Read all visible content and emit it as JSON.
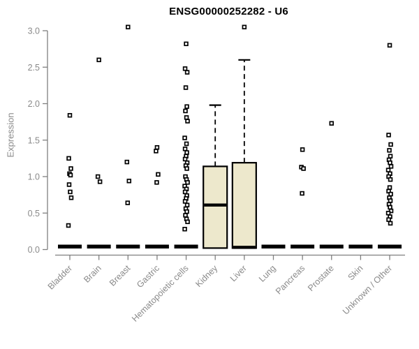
{
  "style": {
    "background": "#ffffff",
    "title_color": "#000000",
    "axis_color": "#7f7f7f",
    "label_color": "#8a8a8a",
    "box_fill": "#ede8cc",
    "box_stroke": "#000000",
    "point_color": "#000000",
    "zero_bar_color": "#000000"
  },
  "chart_data": {
    "type": "boxplot",
    "title": "ENSG00000252282 - U6",
    "ylabel": "Expression",
    "xlabel": "",
    "ylim": [
      0.0,
      3.1
    ],
    "yticks": [
      0.0,
      0.5,
      1.0,
      1.5,
      2.0,
      2.5,
      3.0
    ],
    "ytick_labels": [
      "0.0",
      "0.5",
      "1.0",
      "1.5",
      "2.0",
      "2.5",
      "3.0"
    ],
    "grid": false,
    "legend": null,
    "categories": [
      "Bladder",
      "Brain",
      "Breast",
      "Gastric",
      "Hematopoietic cells",
      "Kidney",
      "Liver",
      "Lung",
      "Pancreas",
      "Prostate",
      "Skin",
      "Unknown / Other"
    ],
    "series": [
      {
        "name": "Bladder",
        "box": {
          "min": 0,
          "q1": 0,
          "median": 0,
          "q3": 0,
          "max": 0
        },
        "outliers": [
          1.84,
          1.25,
          1.11,
          1.04,
          1.02,
          0.89,
          0.79,
          0.71,
          0.33
        ]
      },
      {
        "name": "Brain",
        "box": {
          "min": 0,
          "q1": 0,
          "median": 0,
          "q3": 0,
          "max": 0
        },
        "outliers": [
          2.6,
          1.0,
          0.93
        ]
      },
      {
        "name": "Breast",
        "box": {
          "min": 0,
          "q1": 0,
          "median": 0,
          "q3": 0,
          "max": 0
        },
        "outliers": [
          3.05,
          1.2,
          0.94,
          0.64
        ]
      },
      {
        "name": "Gastric",
        "box": {
          "min": 0,
          "q1": 0,
          "median": 0,
          "q3": 0,
          "max": 0
        },
        "outliers": [
          1.4,
          1.35,
          1.03,
          0.92
        ]
      },
      {
        "name": "Hematopoietic cells",
        "box": {
          "min": 0,
          "q1": 0,
          "median": 0,
          "q3": 0,
          "max": 0
        },
        "outliers": [
          2.82,
          2.48,
          2.43,
          2.22,
          1.96,
          1.9,
          1.81,
          1.76,
          1.53,
          1.45,
          1.38,
          1.33,
          1.28,
          1.24,
          1.19,
          1.15,
          1.11,
          1.0,
          0.96,
          0.92,
          0.87,
          0.83,
          0.79,
          0.74,
          0.7,
          0.66,
          0.61,
          0.56,
          0.52,
          0.47,
          0.42,
          0.38,
          0.28
        ]
      },
      {
        "name": "Kidney",
        "box": {
          "min": 0,
          "q1": 0.02,
          "median": 0.61,
          "q3": 1.14,
          "max": 1.98
        },
        "outliers": []
      },
      {
        "name": "Liver",
        "box": {
          "min": 0,
          "q1": 0.02,
          "median": 0.03,
          "q3": 1.19,
          "max": 2.6
        },
        "outliers": [
          3.05
        ]
      },
      {
        "name": "Lung",
        "box": {
          "min": 0,
          "q1": 0,
          "median": 0,
          "q3": 0,
          "max": 0
        },
        "outliers": []
      },
      {
        "name": "Pancreas",
        "box": {
          "min": 0,
          "q1": 0,
          "median": 0,
          "q3": 0,
          "max": 0
        },
        "outliers": [
          1.37,
          1.13,
          1.11,
          0.77
        ]
      },
      {
        "name": "Prostate",
        "box": {
          "min": 0,
          "q1": 0,
          "median": 0,
          "q3": 0,
          "max": 0
        },
        "outliers": [
          1.73
        ]
      },
      {
        "name": "Skin",
        "box": {
          "min": 0,
          "q1": 0,
          "median": 0,
          "q3": 0,
          "max": 0
        },
        "outliers": []
      },
      {
        "name": "Unknown / Other",
        "box": {
          "min": 0,
          "q1": 0,
          "median": 0,
          "q3": 0,
          "max": 0
        },
        "outliers": [
          2.8,
          1.57,
          1.44,
          1.36,
          1.28,
          1.23,
          1.19,
          1.14,
          1.09,
          1.04,
          1.0,
          0.96,
          0.85,
          0.8,
          0.76,
          0.71,
          0.67,
          0.62,
          0.58,
          0.53,
          0.5,
          0.45,
          0.41,
          0.36
        ]
      }
    ]
  }
}
